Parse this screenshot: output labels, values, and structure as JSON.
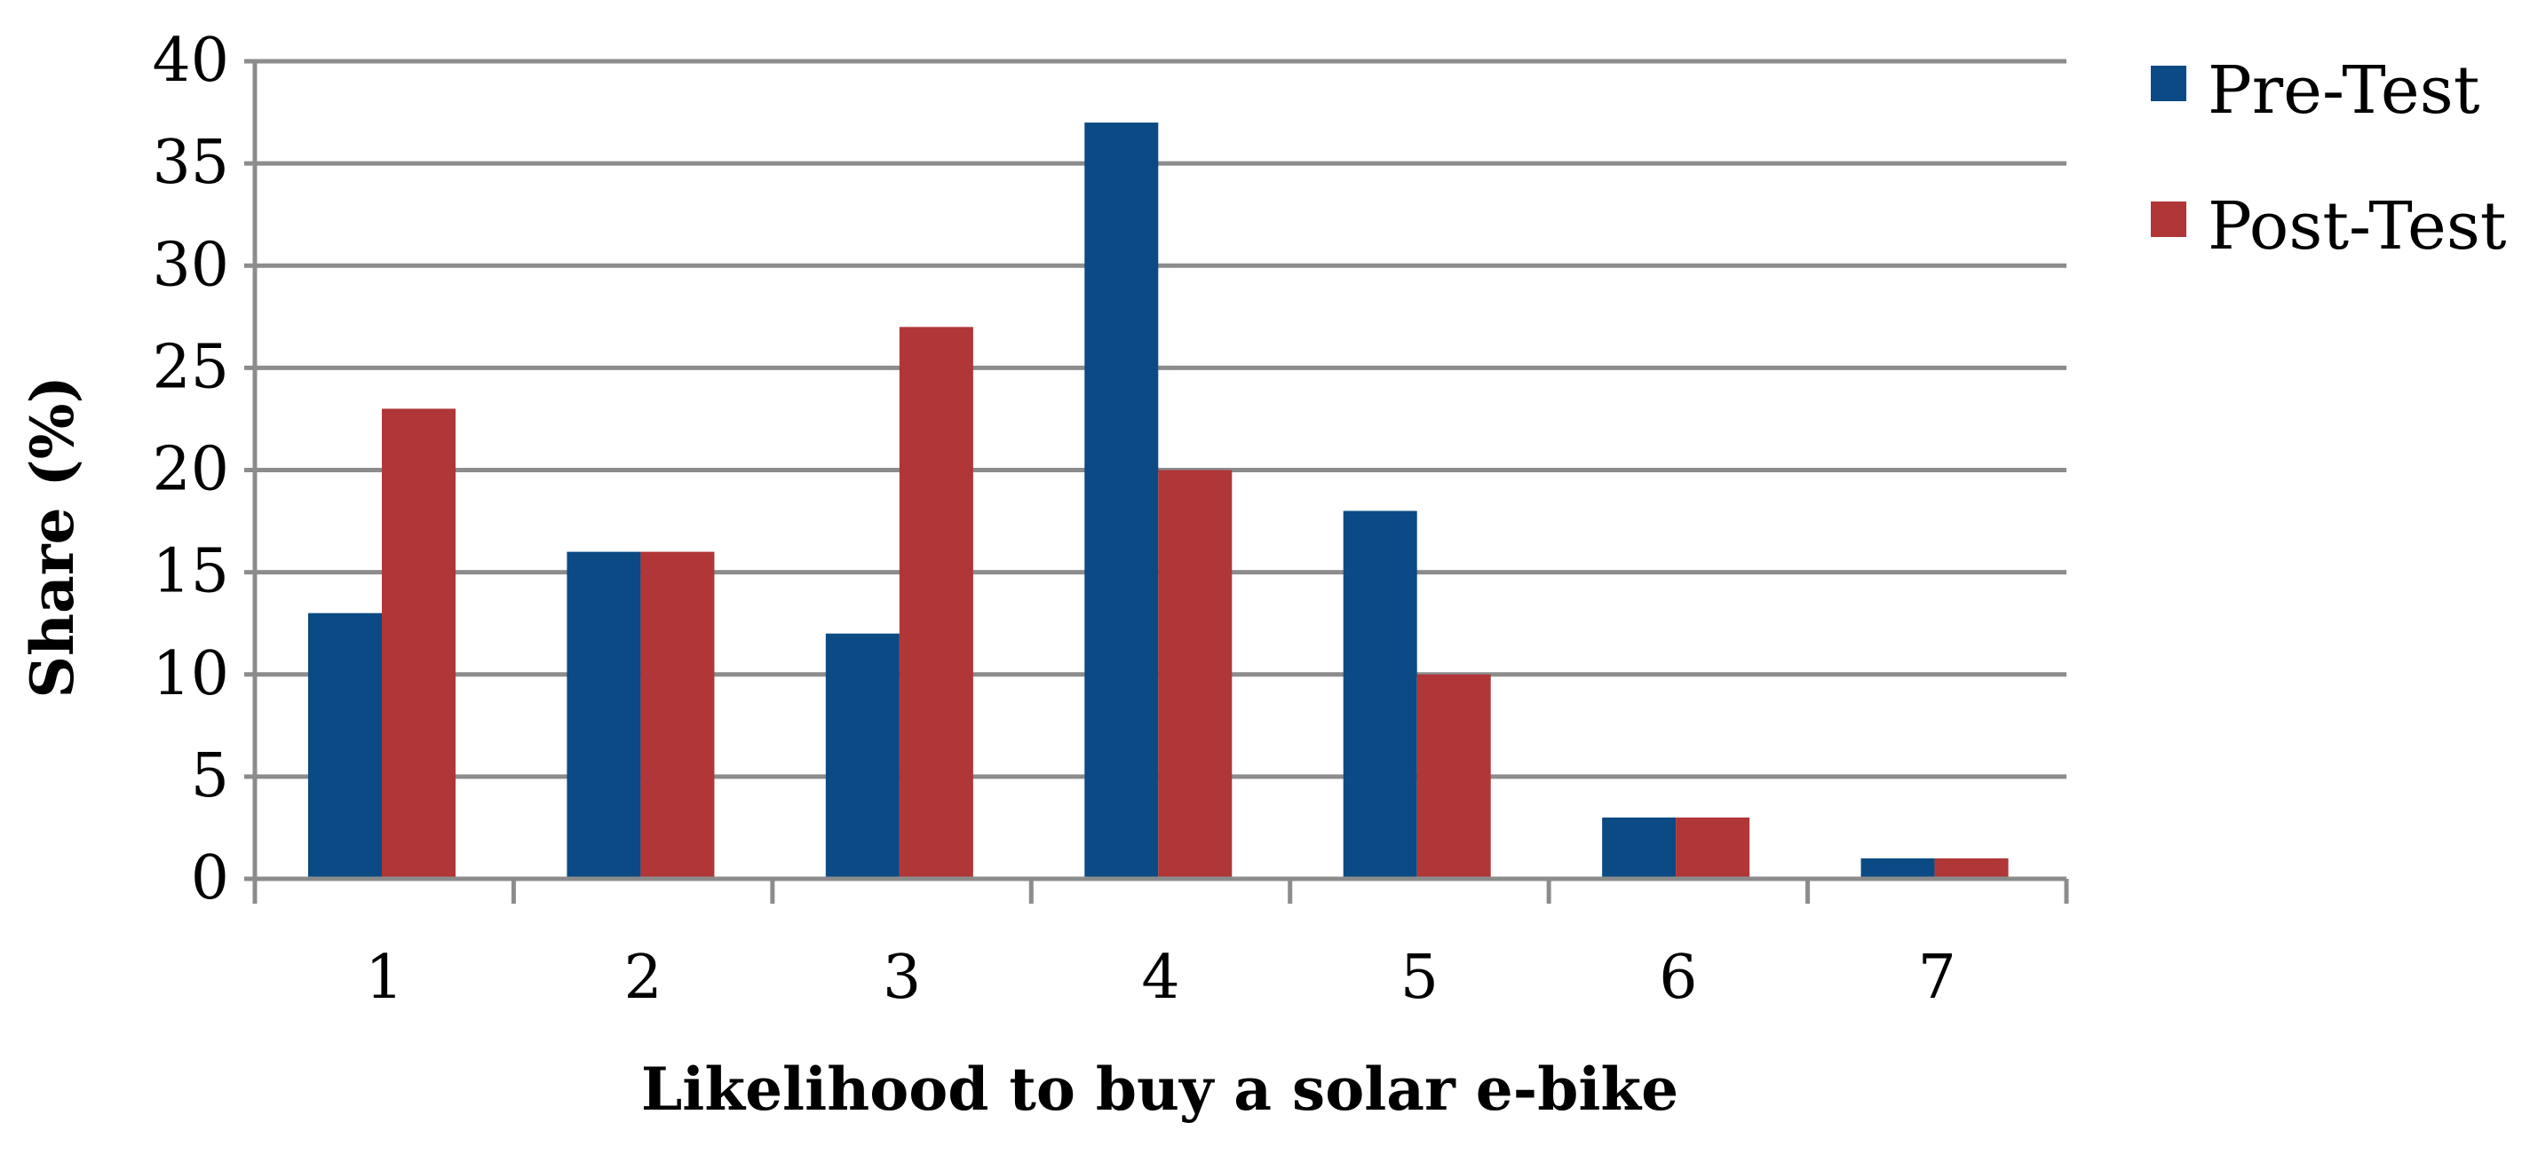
{
  "chart_data": {
    "type": "bar",
    "title": "",
    "xlabel": "Likelihood to buy a solar e-bike",
    "ylabel": "Share (%)",
    "categories": [
      "1",
      "2",
      "3",
      "4",
      "5",
      "6",
      "7"
    ],
    "series": [
      {
        "name": "Pre-Test",
        "color": "#0b4a84",
        "values": [
          13,
          16,
          12,
          37,
          18,
          3,
          1
        ]
      },
      {
        "name": "Post-Test",
        "color": "#b03637",
        "values": [
          23,
          16,
          27,
          20,
          10,
          3,
          1
        ]
      }
    ],
    "ylim": [
      0,
      40
    ],
    "yticks": [
      "0",
      "5",
      "10",
      "15",
      "20",
      "25",
      "30",
      "35",
      "40"
    ],
    "grid": true,
    "legend_position": "right"
  }
}
